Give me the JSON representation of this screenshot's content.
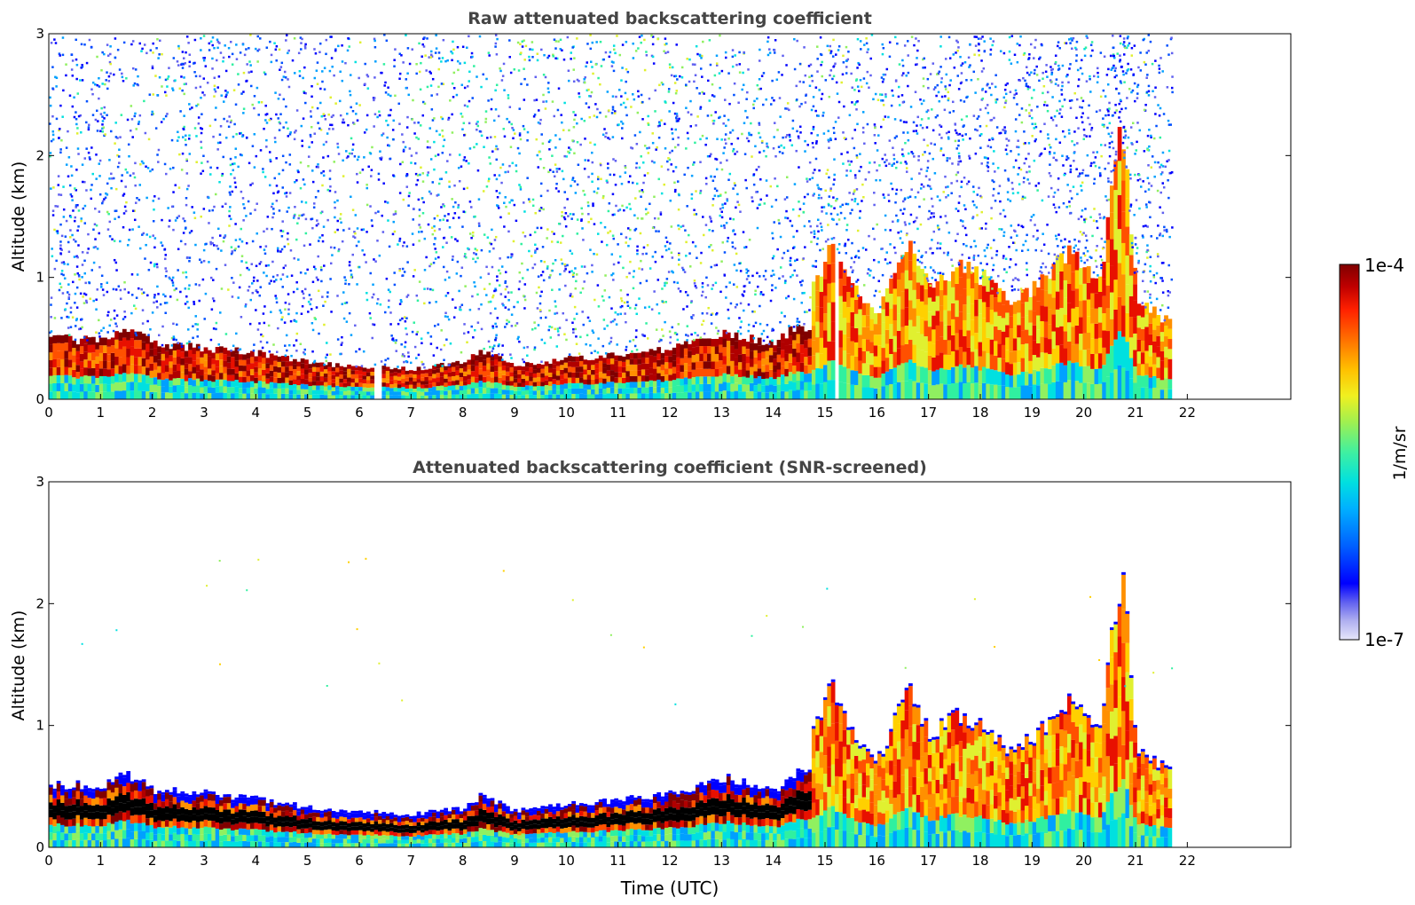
{
  "chart_data": [
    {
      "type": "heatmap",
      "title": "Raw attenuated backscattering coefficient",
      "xlabel": "",
      "ylabel": "Altitude (km)",
      "xlim": [
        0,
        24
      ],
      "ylim": [
        0,
        3
      ],
      "x_ticks": [
        0,
        1,
        2,
        3,
        4,
        5,
        6,
        7,
        8,
        9,
        10,
        11,
        12,
        13,
        14,
        15,
        16,
        17,
        18,
        19,
        20,
        21,
        22
      ],
      "y_ticks": [
        0,
        1,
        2,
        3
      ],
      "data_extent_x": [
        0,
        21.7
      ],
      "description_points": {
        "boundary_layer_top_km": {
          "x": [
            0,
            1,
            1.4,
            2,
            3,
            4,
            5,
            5.5,
            6,
            7,
            8,
            8.3,
            9,
            10,
            11,
            12,
            13,
            14,
            14.4
          ],
          "y": [
            0.5,
            0.48,
            0.6,
            0.45,
            0.42,
            0.38,
            0.3,
            0.28,
            0.27,
            0.25,
            0.3,
            0.4,
            0.28,
            0.33,
            0.37,
            0.42,
            0.55,
            0.45,
            0.6
          ]
        },
        "convective_cloud_top_km": {
          "x": [
            14.8,
            15.1,
            15.5,
            16,
            16.6,
            17,
            17.5,
            18,
            18.5,
            19,
            19.7,
            20.3,
            20.7,
            21,
            21.7
          ],
          "y": [
            1.0,
            1.3,
            0.9,
            0.7,
            1.3,
            0.9,
            1.1,
            1.0,
            0.8,
            0.9,
            1.2,
            1.0,
            2.3,
            0.8,
            0.6
          ]
        }
      }
    },
    {
      "type": "heatmap",
      "title": "Attenuated backscattering coefficient (SNR-screened)",
      "xlabel": "Time (UTC)",
      "ylabel": "Altitude (km)",
      "xlim": [
        0,
        24
      ],
      "ylim": [
        0,
        3
      ],
      "x_ticks": [
        0,
        1,
        2,
        3,
        4,
        5,
        6,
        7,
        8,
        9,
        10,
        11,
        12,
        13,
        14,
        15,
        16,
        17,
        18,
        19,
        20,
        21,
        22
      ],
      "y_ticks": [
        0,
        1,
        2,
        3
      ],
      "data_extent_x": [
        0,
        21.7
      ]
    }
  ],
  "colorbar": {
    "label": "1/m/sr",
    "max_label": "1e-4",
    "min_label": "1e-7",
    "scale": "log",
    "colors": [
      "#e6e6fa",
      "#b0b0f0",
      "#6060f0",
      "#0000ff",
      "#0050ff",
      "#00a0ff",
      "#00e0e0",
      "#30f0a0",
      "#90f060",
      "#e0f030",
      "#ffd000",
      "#ff9000",
      "#ff5000",
      "#e81000",
      "#b00000",
      "#800000"
    ]
  }
}
